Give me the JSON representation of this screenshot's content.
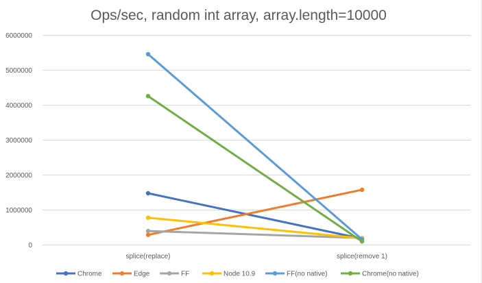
{
  "chart_data": {
    "type": "line",
    "title": "Ops/sec, random int array, array.length=10000",
    "xlabel": "",
    "ylabel": "",
    "categories": [
      "splice(replace)",
      "splice(remove 1)"
    ],
    "ylim": [
      0,
      6000000
    ],
    "yticks": [
      0,
      1000000,
      2000000,
      3000000,
      4000000,
      5000000,
      6000000
    ],
    "ytick_labels": [
      "0",
      "1000000",
      "2000000",
      "3000000",
      "4000000",
      "5000000",
      "6000000"
    ],
    "grid": true,
    "legend_position": "bottom",
    "series": [
      {
        "name": "Chrome",
        "color": "#4472c4",
        "values": [
          1470000,
          170000
        ]
      },
      {
        "name": "Edge",
        "color": "#ed7d31",
        "values": [
          280000,
          1570000
        ]
      },
      {
        "name": "FF",
        "color": "#a5a5a5",
        "values": [
          390000,
          190000
        ]
      },
      {
        "name": "Node 10.9",
        "color": "#ffc000",
        "values": [
          770000,
          180000
        ]
      },
      {
        "name": "FF(no native)",
        "color": "#5b9bd5",
        "values": [
          5450000,
          150000
        ]
      },
      {
        "name": "Chrome(no native)",
        "color": "#70ad47",
        "values": [
          4250000,
          90000
        ]
      }
    ]
  }
}
